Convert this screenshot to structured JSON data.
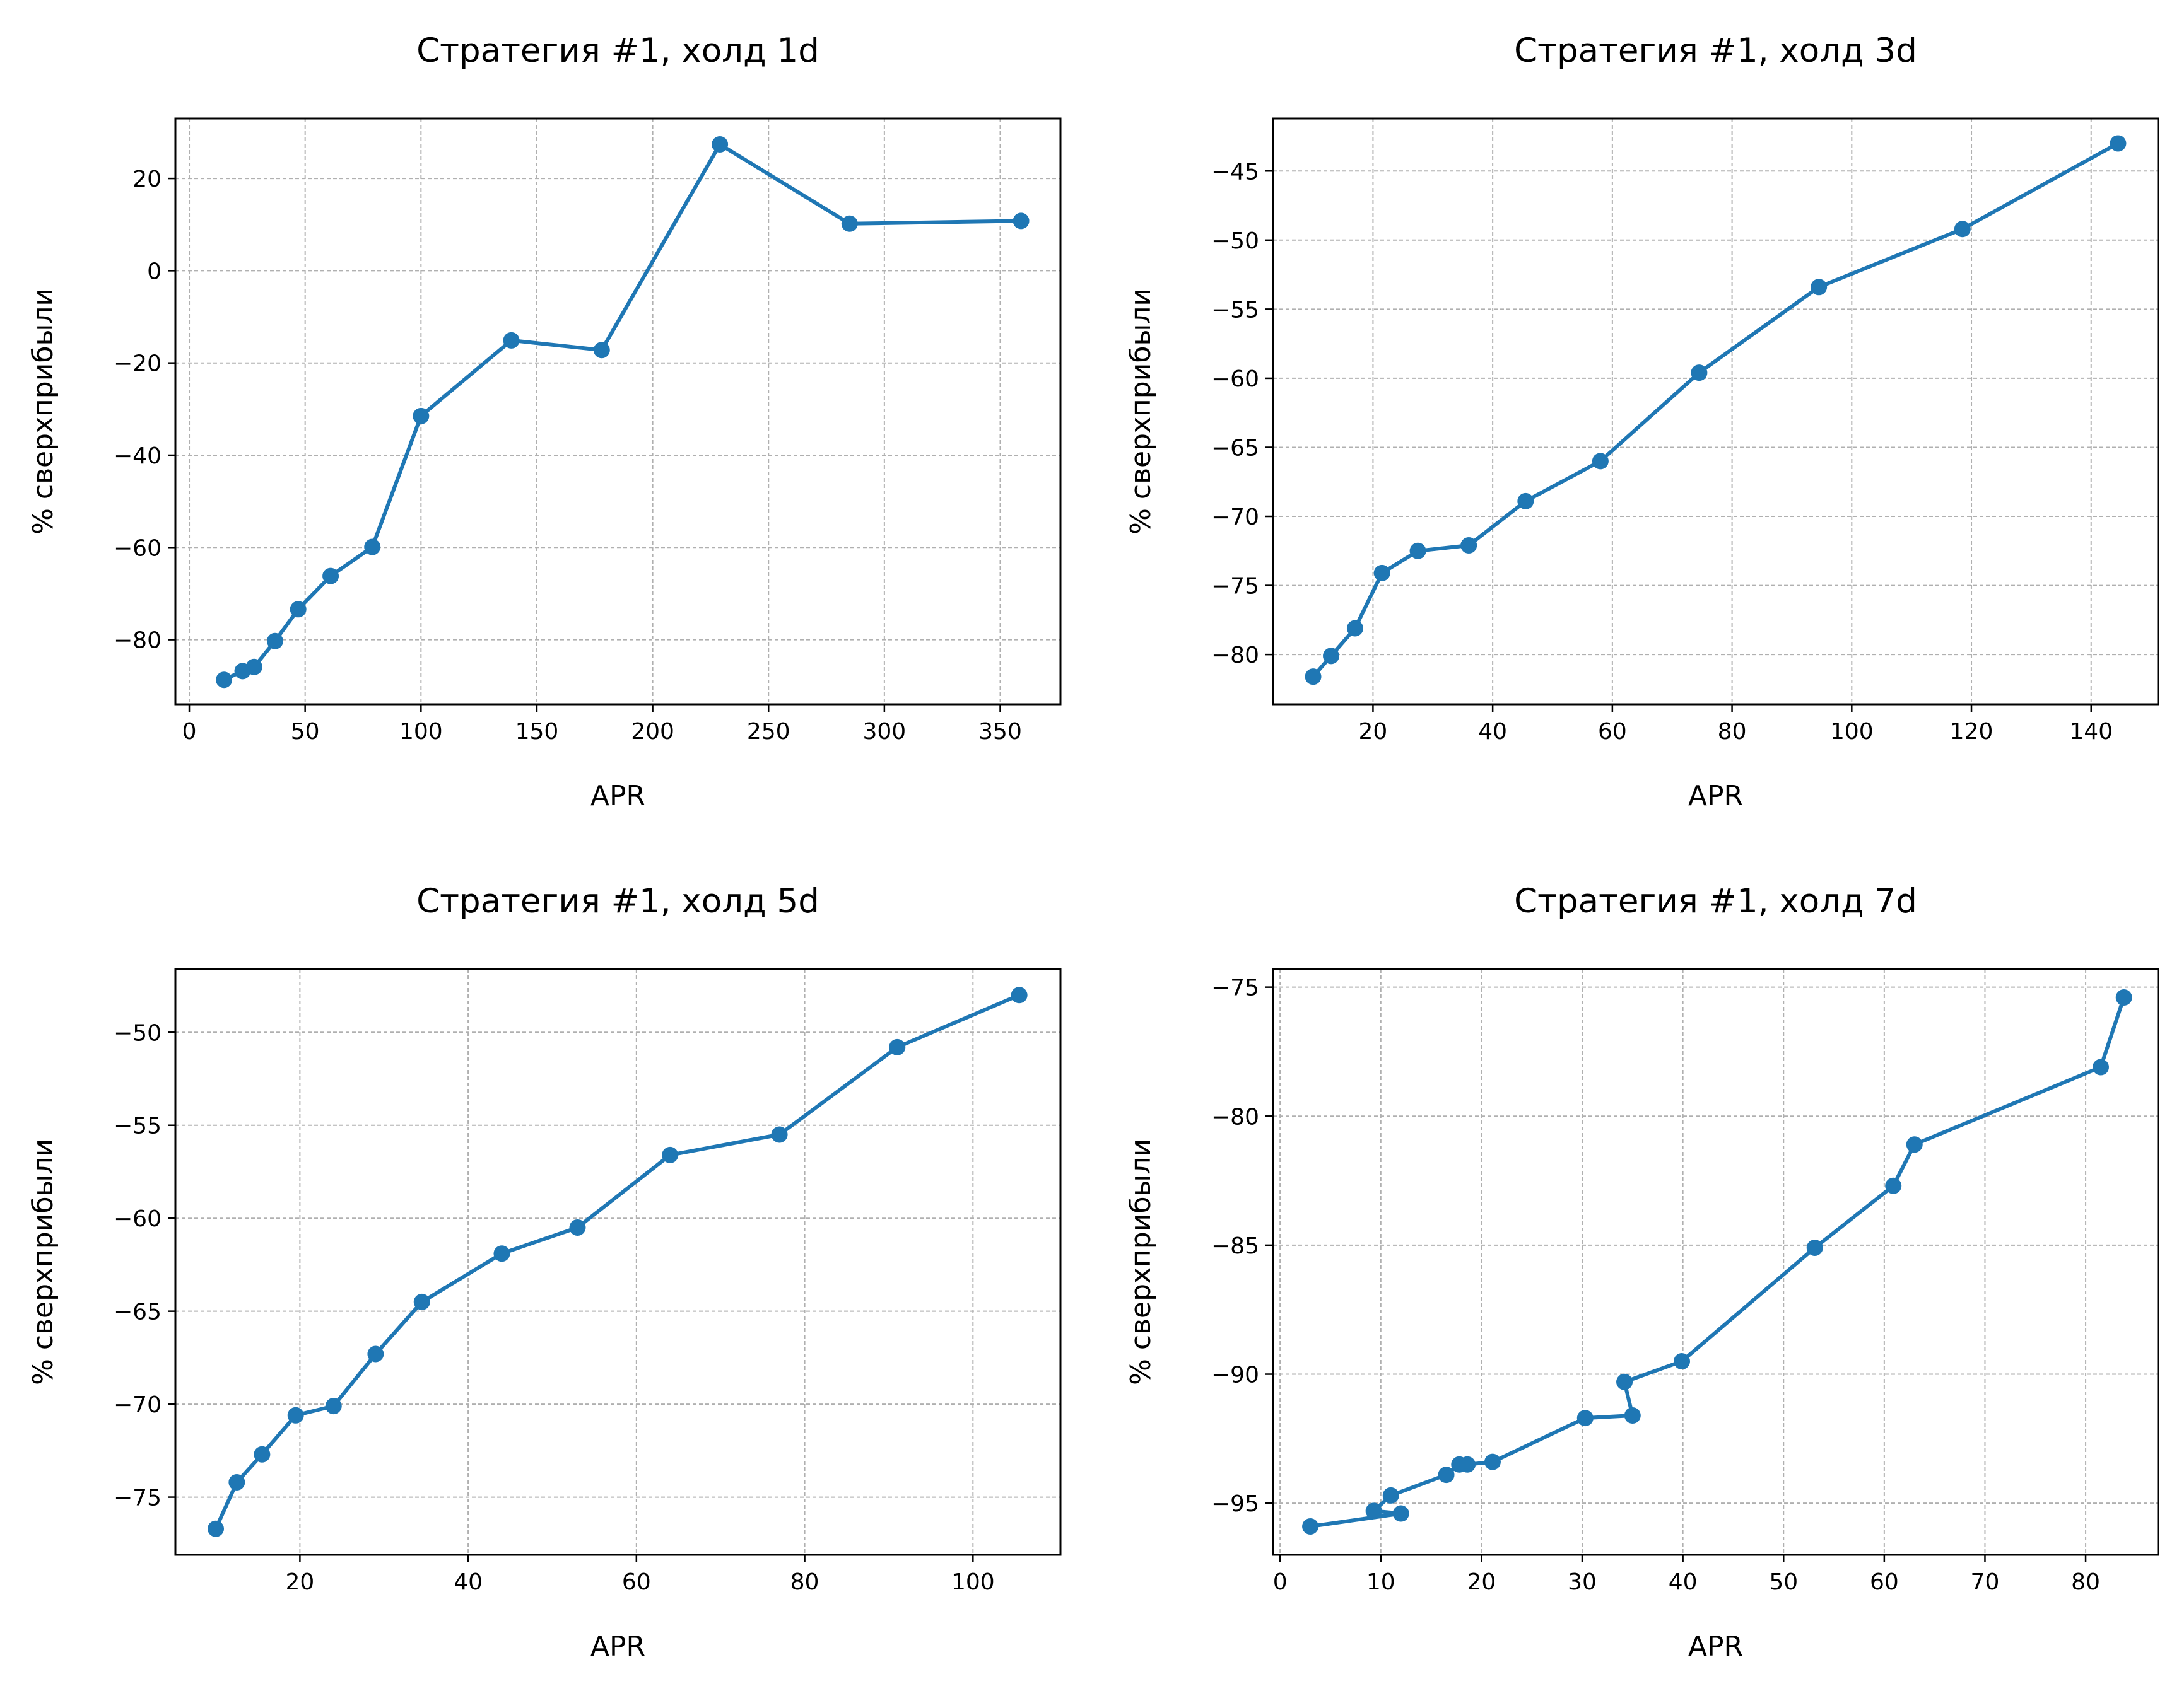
{
  "figure": {
    "line_color": "#1f77b4"
  },
  "chart_data": [
    {
      "type": "line",
      "title": "Стратегия #1, холд 1d",
      "xlabel": "APR",
      "ylabel": "% сверхприбыли",
      "grid": true,
      "marker": "circle",
      "xlim": [
        -6,
        376
      ],
      "ylim": [
        -94,
        33
      ],
      "xticks": [
        0,
        50,
        100,
        150,
        200,
        250,
        300,
        350
      ],
      "yticks": [
        -80,
        -60,
        -40,
        -20,
        0,
        20
      ],
      "series": [
        {
          "x": [
            15,
            23,
            28,
            37,
            47,
            61,
            79,
            100,
            139,
            178,
            229,
            285,
            359
          ],
          "y": [
            -88.7,
            -86.8,
            -85.9,
            -80.3,
            -73.4,
            -66.2,
            -59.9,
            -31.5,
            -15.1,
            -17.2,
            27.4,
            10.2,
            10.8
          ]
        }
      ]
    },
    {
      "type": "line",
      "title": "Стратегия #1, холд 3d",
      "xlabel": "APR",
      "ylabel": "% сверхприбыли",
      "grid": true,
      "marker": "circle",
      "xlim": [
        3.3,
        151.2
      ],
      "ylim": [
        -83.6,
        -41.2
      ],
      "xticks": [
        20,
        40,
        60,
        80,
        100,
        120,
        140
      ],
      "yticks": [
        -80,
        -75,
        -70,
        -65,
        -60,
        -55,
        -50,
        -45
      ],
      "series": [
        {
          "x": [
            10,
            13,
            17,
            21.5,
            27.5,
            36,
            45.5,
            58,
            74.5,
            94.5,
            118.5,
            144.5
          ],
          "y": [
            -81.6,
            -80.1,
            -78.1,
            -74.1,
            -72.5,
            -72.1,
            -68.9,
            -66,
            -59.6,
            -53.4,
            -49.2,
            -43
          ]
        }
      ]
    },
    {
      "type": "line",
      "title": "Стратегия #1, холд 5d",
      "xlabel": "APR",
      "ylabel": "% сверхприбыли",
      "grid": true,
      "marker": "circle",
      "xlim": [
        5.2,
        110.4
      ],
      "ylim": [
        -78.1,
        -46.6
      ],
      "xticks": [
        20,
        40,
        60,
        80,
        100
      ],
      "yticks": [
        -75,
        -70,
        -65,
        -60,
        -55,
        -50
      ],
      "series": [
        {
          "x": [
            10,
            12.5,
            15.5,
            19.5,
            24,
            29,
            34.5,
            44,
            53,
            64,
            77,
            91,
            105.5
          ],
          "y": [
            -76.7,
            -74.2,
            -72.7,
            -70.6,
            -70.1,
            -67.3,
            -64.5,
            -61.9,
            -60.5,
            -56.6,
            -55.5,
            -50.8,
            -48
          ]
        }
      ]
    },
    {
      "type": "line",
      "title": "Стратегия #1, холд 7d",
      "xlabel": "APR",
      "ylabel": "% сверхприбыли",
      "grid": true,
      "marker": "circle",
      "xlim": [
        -0.7,
        87.2
      ],
      "ylim": [
        -97,
        -74.3
      ],
      "xticks": [
        0,
        10,
        20,
        30,
        40,
        50,
        60,
        70,
        80
      ],
      "yticks": [
        -95,
        -90,
        -85,
        -80,
        -75
      ],
      "series": [
        {
          "x": [
            3,
            12,
            9.3,
            11,
            16.5,
            17.8,
            18.6,
            21.1,
            30.3,
            35,
            34.2,
            39.9,
            53.1,
            60.9,
            63,
            81.5,
            83.8
          ],
          "y": [
            -95.9,
            -95.4,
            -95.3,
            -94.7,
            -93.9,
            -93.5,
            -93.5,
            -93.4,
            -91.7,
            -91.6,
            -90.3,
            -89.5,
            -85.1,
            -82.7,
            -81.1,
            -78.1,
            -75.4
          ]
        }
      ]
    }
  ]
}
